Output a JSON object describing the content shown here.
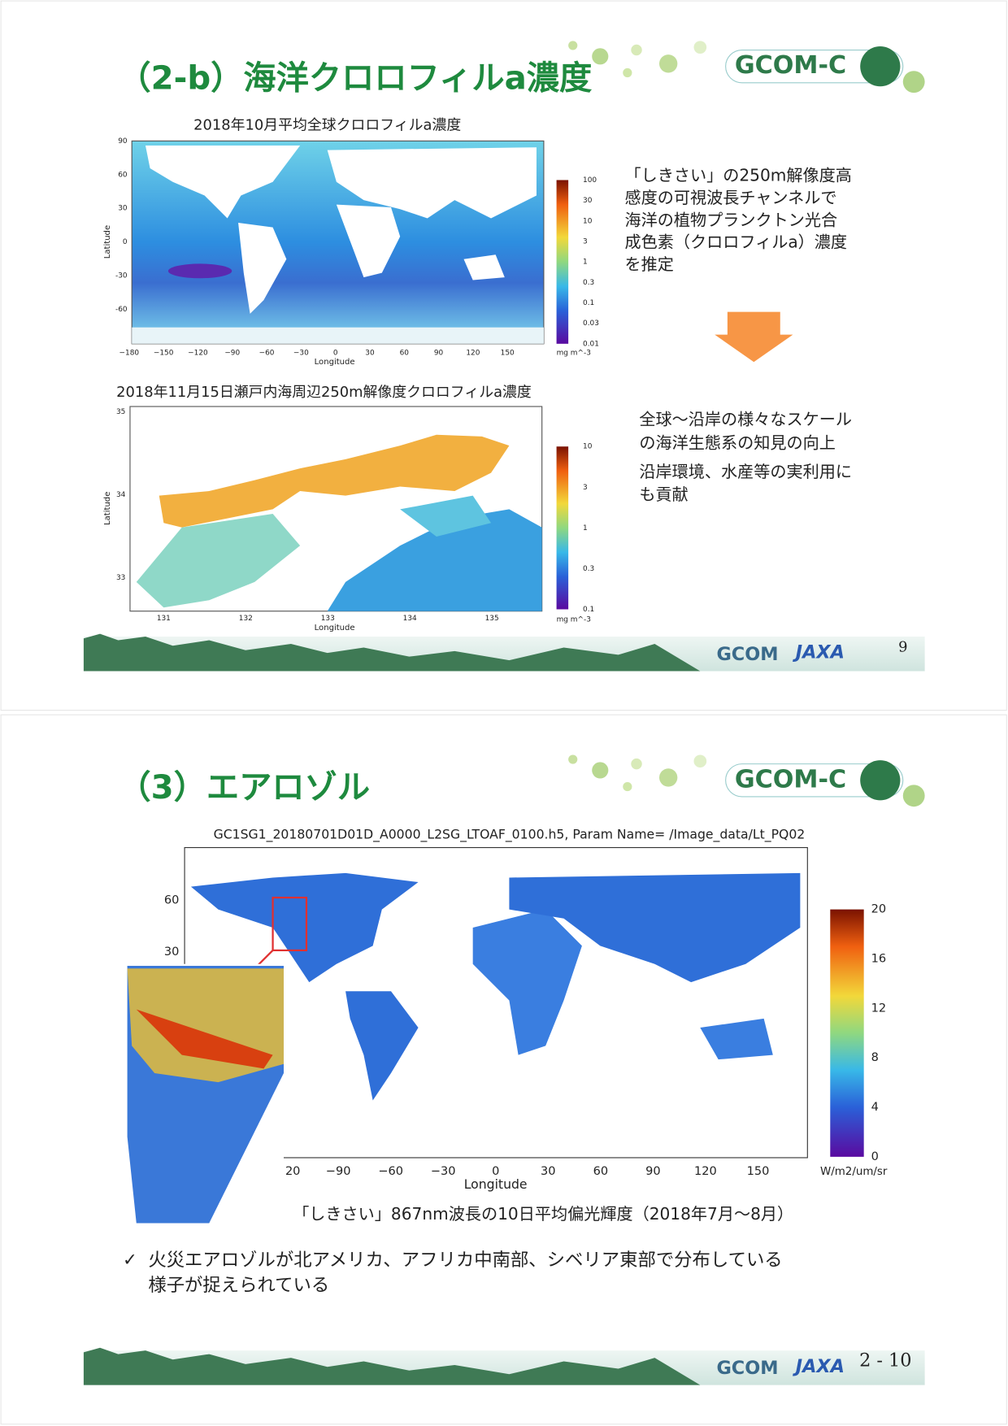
{
  "slide1": {
    "title": "（2-b）海洋クロロフィルa濃度",
    "logo": "GCOM-C",
    "map1": {
      "title": "2018年10月平均全球クロロフィルa濃度",
      "ylabel": "Latitude",
      "xlabel": "Longitude",
      "yticks": [
        "90",
        "60",
        "30",
        "0",
        "-30",
        "-60"
      ],
      "xticks": [
        "−180",
        "−150",
        "−120",
        "−90",
        "−60",
        "−30",
        "0",
        "30",
        "60",
        "90",
        "120",
        "150"
      ],
      "colorbar_ticks": [
        "100",
        "30",
        "10",
        "3",
        "1",
        "0.3",
        "0.1",
        "0.03",
        "0.01"
      ],
      "unit": "mg m^-3"
    },
    "description": [
      "「しきさい」の250m解像度高",
      "感度の可視波長チャンネルで",
      "海洋の植物プランクトン光合",
      "成色素（クロロフィルa）濃度",
      "を推定"
    ],
    "map2": {
      "title": "2018年11月15日瀬戸内海周辺250m解像度クロロフィルa濃度",
      "ylabel": "Latitude",
      "xlabel": "Longitude",
      "yticks": [
        "35",
        "34",
        "33"
      ],
      "xticks": [
        "131",
        "132",
        "133",
        "134",
        "135"
      ],
      "colorbar_ticks": [
        "10",
        "3",
        "1",
        "0.3",
        "0.1"
      ],
      "unit": "mg m^-3"
    },
    "points": [
      [
        "全球〜沿岸の様々なスケール",
        "の海洋生態系の知見の向上"
      ],
      [
        "沿岸環境、水産等の実利用に",
        "も貢献"
      ]
    ],
    "footer": {
      "logo1": "GCOM",
      "logo2": "JAXA",
      "page": "9"
    }
  },
  "slide2": {
    "title": "（3）エアロゾル",
    "logo": "GCOM-C",
    "map": {
      "title": "GC1SG1_20180701D01D_A0000_L2SG_LTOAF_0100.h5, Param Name= /Image_data/Lt_PQ02",
      "yticks": [
        "60",
        "30"
      ],
      "xticks": [
        "20",
        "−90",
        "−60",
        "−30",
        "0",
        "30",
        "60",
        "90",
        "120",
        "150"
      ],
      "xlabel": "Longitude",
      "colorbar_ticks": [
        "20",
        "16",
        "12",
        "8",
        "4",
        "0"
      ],
      "unit": "W/m2/um/sr"
    },
    "caption": "「しきさい」867nm波長の10日平均偏光輝度（2018年7月〜8月）",
    "bullet_mark": "✓",
    "bullet": [
      "火災エアロゾルが北アメリカ、アフリカ中南部、シベリア東部で分布している",
      "様子が捉えられている"
    ],
    "footer": {
      "logo1": "GCOM",
      "logo2": "JAXA",
      "page": "2 - 10"
    }
  }
}
